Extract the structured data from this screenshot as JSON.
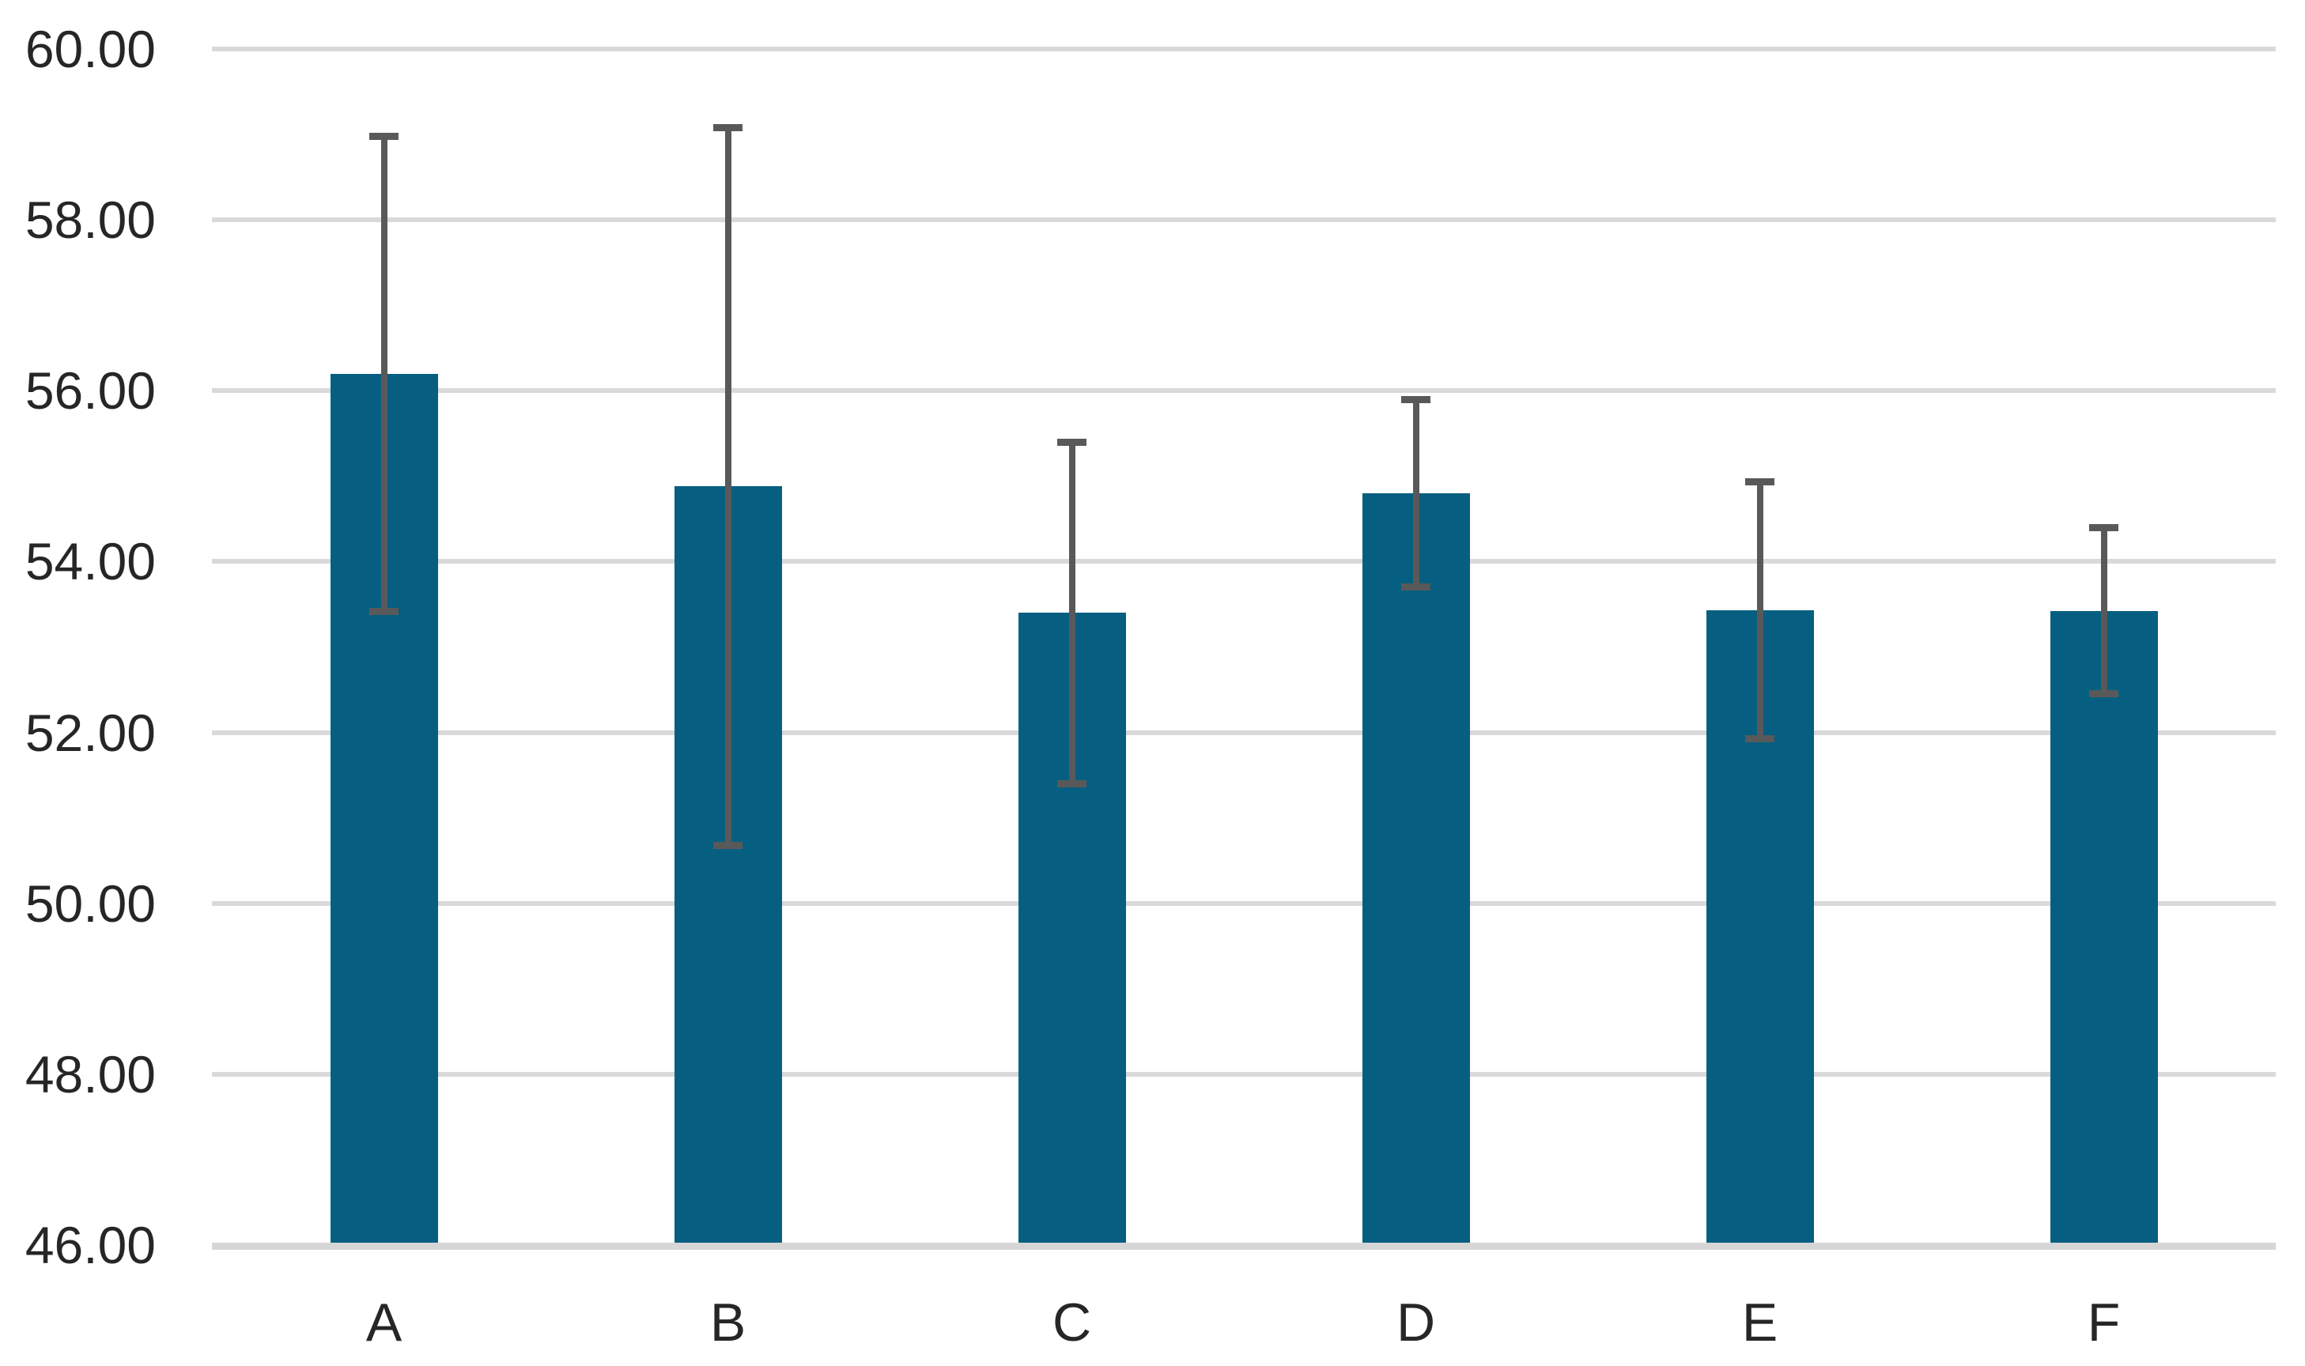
{
  "chart_data": {
    "type": "bar",
    "title": "",
    "xlabel": "",
    "ylabel": "",
    "categories": [
      "A",
      "B",
      "C",
      "D",
      "E",
      "F"
    ],
    "values": [
      56.2,
      54.88,
      53.4,
      54.8,
      53.43,
      53.42
    ],
    "error": [
      2.78,
      4.2,
      2.0,
      1.1,
      1.5,
      0.97
    ],
    "error_bar_top": [
      58.98,
      59.08,
      55.4,
      55.9,
      54.93,
      54.4
    ],
    "error_bar_bottom": [
      53.42,
      50.68,
      51.4,
      53.7,
      51.93,
      52.45
    ],
    "ylim": [
      46,
      60
    ],
    "y_tick_values": [
      60,
      58,
      56,
      54,
      52,
      50,
      48,
      46
    ],
    "y_ticks": [
      "60.00",
      "58.00",
      "56.00",
      "54.00",
      "52.00",
      "50.00",
      "48.00",
      "46.00"
    ],
    "grid": "horizontal",
    "legend": "none",
    "colors": {
      "bar": "#065F81",
      "error_bar": "#595959",
      "gridline": "#D9D9D9",
      "axis_line": "#D6D6D6",
      "label": "#262626",
      "background": "#FFFFFF"
    }
  }
}
